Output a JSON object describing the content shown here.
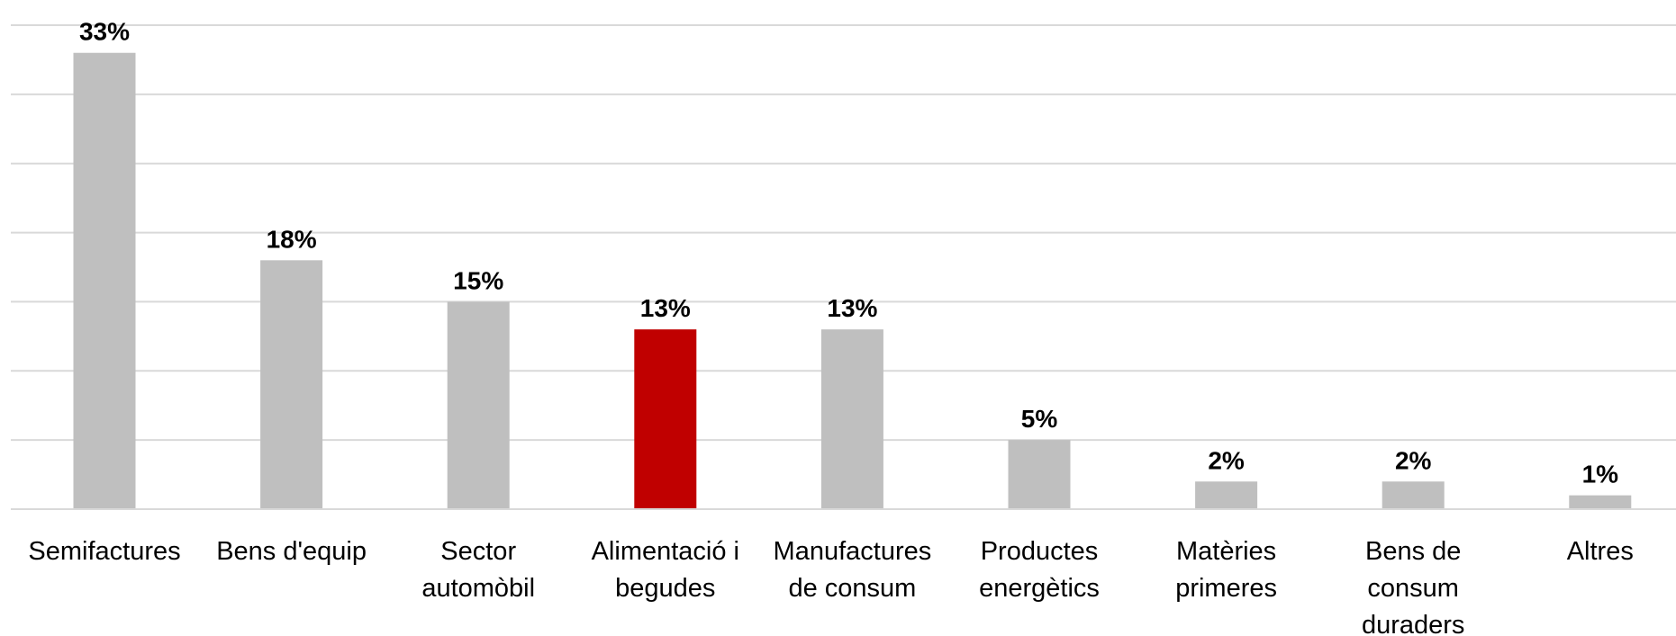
{
  "chart_data": {
    "type": "bar",
    "categories": [
      [
        "Semifactures"
      ],
      [
        "Bens d'equip"
      ],
      [
        "Sector",
        "automòbil"
      ],
      [
        "Alimentació i",
        "begudes"
      ],
      [
        "Manufactures",
        "de consum"
      ],
      [
        "Productes",
        "energètics"
      ],
      [
        "Matèries",
        "primeres"
      ],
      [
        "Bens de",
        "consum",
        "duraders"
      ],
      [
        "Altres"
      ]
    ],
    "values": [
      33,
      18,
      15,
      13,
      13,
      5,
      2,
      2,
      1
    ],
    "data_labels": [
      "33%",
      "18%",
      "15%",
      "13%",
      "13%",
      "5%",
      "2%",
      "2%",
      "1%"
    ],
    "colors": [
      "#bfbfbf",
      "#bfbfbf",
      "#bfbfbf",
      "#c00000",
      "#bfbfbf",
      "#bfbfbf",
      "#bfbfbf",
      "#bfbfbf",
      "#bfbfbf"
    ],
    "ylim": [
      0,
      35
    ],
    "gridlines": [
      5,
      10,
      15,
      20,
      25,
      30,
      35
    ],
    "grid": true,
    "y_tick_labels_shown": false
  }
}
